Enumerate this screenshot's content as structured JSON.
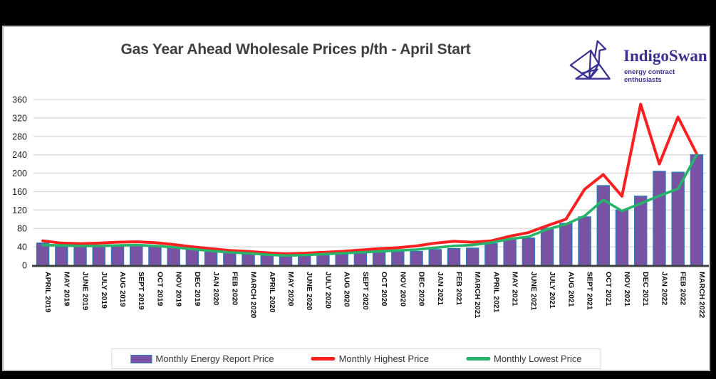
{
  "header": {
    "title": "Gas Year Ahead Wholesale Prices p/th - April Start",
    "logo": {
      "name": "IndigoSwan",
      "tagline": "energy contract enthusiasts"
    }
  },
  "colors": {
    "bar_fill": "#7a52a3",
    "bar_border": "#2e75b6",
    "highest_line": "#fb2020",
    "lowest_line": "#27b369",
    "grid": "#d9d9d9",
    "axis": "#404040",
    "tick_text": "#1a1a1a",
    "logo_indigo": "#3a3191",
    "title_text": "#3f3f3f"
  },
  "chart_data": {
    "type": "bar",
    "title": "Gas Year Ahead Wholesale Prices p/th - April Start",
    "xlabel": "",
    "ylabel": "",
    "ylim": [
      0,
      360
    ],
    "ytick": 40,
    "grid": true,
    "legend_position": "bottom",
    "categories": [
      "APRIL 2019",
      "MAY 2019",
      "JUNE 2019",
      "JULY 2019",
      "AUG 2019",
      "SEPT 2019",
      "OCT 2019",
      "NOV 2019",
      "DEC 2019",
      "JAN 2020",
      "FEB 2020",
      "MARCH 2020",
      "APRIL 2020",
      "MAY 2020",
      "JUNE 2020",
      "JULY 2020",
      "AUG 2020",
      "SEPT 2020",
      "OCT 2020",
      "NOV 2020",
      "DEC 2020",
      "JAN 2021",
      "FEB 2021",
      "MARCH 2021",
      "APRIL 2021",
      "MAY 2021",
      "JUNE 2021",
      "JULY 2021",
      "AUG 2021",
      "SEPT 2021",
      "OCT 2021",
      "NOV 2021",
      "DEC 2021",
      "JAN 2022",
      "FEB 2022",
      "MARCH 2022"
    ],
    "series": [
      {
        "name": "Monthly Energy Report Price",
        "type": "bar",
        "values": [
          48,
          40,
          41,
          42,
          43,
          43,
          41,
          38,
          34,
          30,
          27,
          25,
          21,
          19,
          20,
          22,
          24,
          26,
          28,
          29,
          30,
          34,
          36,
          37,
          47,
          58,
          59,
          81,
          91,
          105,
          173,
          120,
          150,
          204,
          202,
          240
        ]
      },
      {
        "name": "Monthly Highest Price",
        "type": "line",
        "values": [
          53,
          48,
          47,
          48,
          50,
          51,
          49,
          45,
          40,
          36,
          32,
          30,
          27,
          25,
          26,
          28,
          30,
          33,
          36,
          38,
          42,
          48,
          52,
          50,
          53,
          63,
          71,
          86,
          100,
          165,
          197,
          150,
          350,
          220,
          322,
          242
        ]
      },
      {
        "name": "Monthly Lowest Price",
        "type": "line",
        "values": [
          44,
          43,
          42,
          42,
          43,
          44,
          42,
          39,
          35,
          31,
          28,
          26,
          23,
          21,
          22,
          24,
          26,
          28,
          30,
          32,
          34,
          38,
          42,
          44,
          49,
          57,
          62,
          78,
          89,
          107,
          142,
          118,
          134,
          151,
          166,
          240
        ]
      }
    ]
  }
}
